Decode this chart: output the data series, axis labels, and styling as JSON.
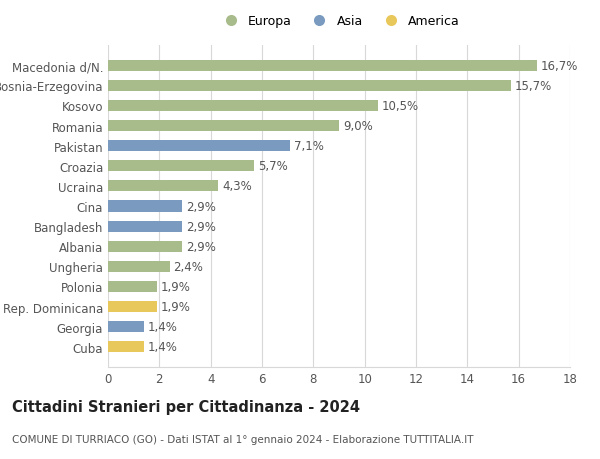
{
  "categories": [
    "Cuba",
    "Georgia",
    "Rep. Dominicana",
    "Polonia",
    "Ungheria",
    "Albania",
    "Bangladesh",
    "Cina",
    "Ucraina",
    "Croazia",
    "Pakistan",
    "Romania",
    "Kosovo",
    "Bosnia-Erzegovina",
    "Macedonia d/N."
  ],
  "values": [
    1.4,
    1.4,
    1.9,
    1.9,
    2.4,
    2.9,
    2.9,
    2.9,
    4.3,
    5.7,
    7.1,
    9.0,
    10.5,
    15.7,
    16.7
  ],
  "colors": [
    "#e8c85a",
    "#7a9bbf",
    "#e8c85a",
    "#a8bb8a",
    "#a8bb8a",
    "#a8bb8a",
    "#7a9bbf",
    "#7a9bbf",
    "#a8bb8a",
    "#a8bb8a",
    "#7a9bbf",
    "#a8bb8a",
    "#a8bb8a",
    "#a8bb8a",
    "#a8bb8a"
  ],
  "labels": [
    "1,4%",
    "1,4%",
    "1,9%",
    "1,9%",
    "2,4%",
    "2,9%",
    "2,9%",
    "2,9%",
    "4,3%",
    "5,7%",
    "7,1%",
    "9,0%",
    "10,5%",
    "15,7%",
    "16,7%"
  ],
  "legend": [
    {
      "label": "Europa",
      "color": "#a8bb8a"
    },
    {
      "label": "Asia",
      "color": "#7a9bbf"
    },
    {
      "label": "America",
      "color": "#e8c85a"
    }
  ],
  "xlim": [
    0,
    18
  ],
  "xticks": [
    0,
    2,
    4,
    6,
    8,
    10,
    12,
    14,
    16,
    18
  ],
  "title": "Cittadini Stranieri per Cittadinanza - 2024",
  "subtitle": "COMUNE DI TURRIACO (GO) - Dati ISTAT al 1° gennaio 2024 - Elaborazione TUTTITALIA.IT",
  "bg_color": "#ffffff",
  "grid_color": "#d8d8d8",
  "bar_height": 0.55,
  "label_fontsize": 8.5,
  "tick_fontsize": 8.5,
  "title_fontsize": 10.5,
  "subtitle_fontsize": 7.5
}
